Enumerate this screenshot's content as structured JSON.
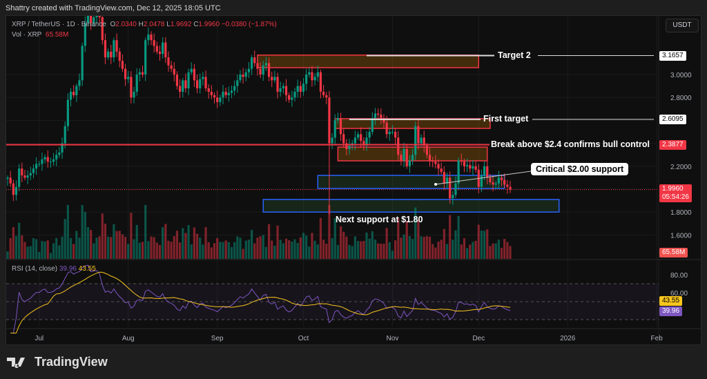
{
  "credit": "Shattry created with TradingView.com, Dec 12, 2025 18:05 UTC",
  "legend": {
    "symbol": "XRP / TetherUS · 1D · Binance",
    "o_label": "O",
    "o": "2.0340",
    "h_label": "H",
    "h": "2.0478",
    "l_label": "L",
    "l": "1.9692",
    "c_label": "C",
    "c": "1.9960",
    "change": "−0.0380 (−1.87%)",
    "vol_label": "Vol · XRP",
    "vol": "65.58M"
  },
  "currency_button": "USDT",
  "rsi_legend": {
    "label": "RSI (14, close)",
    "rsi": "39.96",
    "ma": "43.55"
  },
  "price_tags": {
    "target2": "3.1657",
    "first_target": "2.6095",
    "break": "2.3877",
    "last": "1.9960",
    "countdown": "05:54:26",
    "volume": "65.58M",
    "rsi_ma": "43.55",
    "rsi": "39.96"
  },
  "annotations": {
    "target2": "Target 2",
    "first_target": "First target",
    "break": "Break above $2.4 confirms bull control",
    "critical": "Critical $2.00 support",
    "next_support": "Next support at $1.80"
  },
  "logo": "TradingView",
  "colors": {
    "up": "#089981",
    "down": "#f23645",
    "zone_red": "#f23645",
    "zone_blue": "#2962ff",
    "rsi": "#7e57c2",
    "rsi_ma": "#f7c51e"
  },
  "chart_data": {
    "type": "candlestick",
    "start_date": "2025-06-20",
    "closes": [
      2.1,
      2.05,
      1.95,
      2.02,
      2.18,
      2.12,
      2.1,
      2.12,
      2.14,
      2.18,
      2.22,
      2.22,
      2.26,
      2.28,
      2.24,
      2.24,
      2.26,
      2.3,
      2.32,
      2.4,
      2.55,
      2.78,
      2.85,
      2.82,
      2.9,
      2.95,
      3.25,
      3.45,
      3.55,
      3.45,
      3.5,
      3.55,
      3.5,
      3.3,
      3.15,
      3.2,
      3.15,
      3.3,
      3.2,
      3.12,
      3.05,
      2.96,
      2.98,
      2.8,
      2.85,
      3.0,
      3.02,
      3.0,
      3.3,
      3.35,
      3.3,
      3.25,
      3.2,
      3.18,
      3.28,
      3.15,
      3.08,
      3.05,
      3.0,
      2.9,
      2.85,
      2.95,
      2.88,
      3.02,
      3.05,
      2.95,
      2.88,
      2.96,
      2.98,
      2.88,
      2.85,
      2.82,
      2.8,
      2.76,
      2.8,
      2.85,
      2.82,
      2.84,
      2.86,
      2.9,
      2.95,
      3.0,
      2.98,
      3.02,
      3.05,
      3.15,
      3.1,
      3.05,
      3.0,
      3.08,
      3.1,
      2.98,
      2.95,
      2.98,
      2.85,
      2.88,
      2.9,
      2.82,
      2.78,
      2.8,
      2.85,
      2.9,
      2.85,
      2.92,
      3.0,
      3.02,
      2.95,
      2.98,
      3.02,
      2.85,
      2.82,
      2.8,
      2.4,
      2.45,
      2.6,
      2.62,
      2.48,
      2.4,
      2.35,
      2.38,
      2.4,
      2.45,
      2.48,
      2.42,
      2.38,
      2.45,
      2.5,
      2.62,
      2.66,
      2.65,
      2.62,
      2.58,
      2.48,
      2.5,
      2.5,
      2.45,
      2.3,
      2.25,
      2.35,
      2.2,
      2.25,
      2.3,
      2.55,
      2.4,
      2.45,
      2.38,
      2.3,
      2.25,
      2.24,
      2.22,
      2.18,
      2.15,
      2.05,
      2.1,
      1.92,
      1.95,
      2.05,
      2.25,
      2.24,
      2.2,
      2.21,
      2.18,
      2.2,
      2.17,
      2.02,
      2.12,
      2.2,
      2.1,
      2.06,
      2.04,
      2.05,
      2.1,
      2.08,
      2.04,
      2.02,
      1.996
    ],
    "x_ticks": [
      "Jul",
      "Aug",
      "Sep",
      "Oct",
      "Nov",
      "Dec",
      "2026",
      "Feb"
    ],
    "y_ticks": [
      "3.0000",
      "2.8000",
      "2.2000",
      "1.8000",
      "1.6000"
    ],
    "rsi_ticks": [
      "80.00",
      "60.00"
    ],
    "zones": [
      {
        "name": "target2",
        "from": "2025-09-15",
        "to": "2025-12-01",
        "top": 3.17,
        "bottom": 3.06,
        "color": "red"
      },
      {
        "name": "first-target",
        "from": "2025-10-12",
        "to": "2025-12-05",
        "top": 2.615,
        "bottom": 2.53,
        "color": "red"
      },
      {
        "name": "resistance",
        "from": "2025-10-13",
        "to": "2025-12-04",
        "top": 2.367,
        "bottom": 2.247,
        "color": "red"
      },
      {
        "name": "critical-support",
        "from": "2025-10-06",
        "to": "2025-12-10",
        "top": 2.12,
        "bottom": 2.006,
        "color": "blue"
      },
      {
        "name": "next-support",
        "from": "2025-09-17",
        "to": "2025-12-29",
        "top": 1.91,
        "bottom": 1.8,
        "color": "blue"
      }
    ]
  }
}
